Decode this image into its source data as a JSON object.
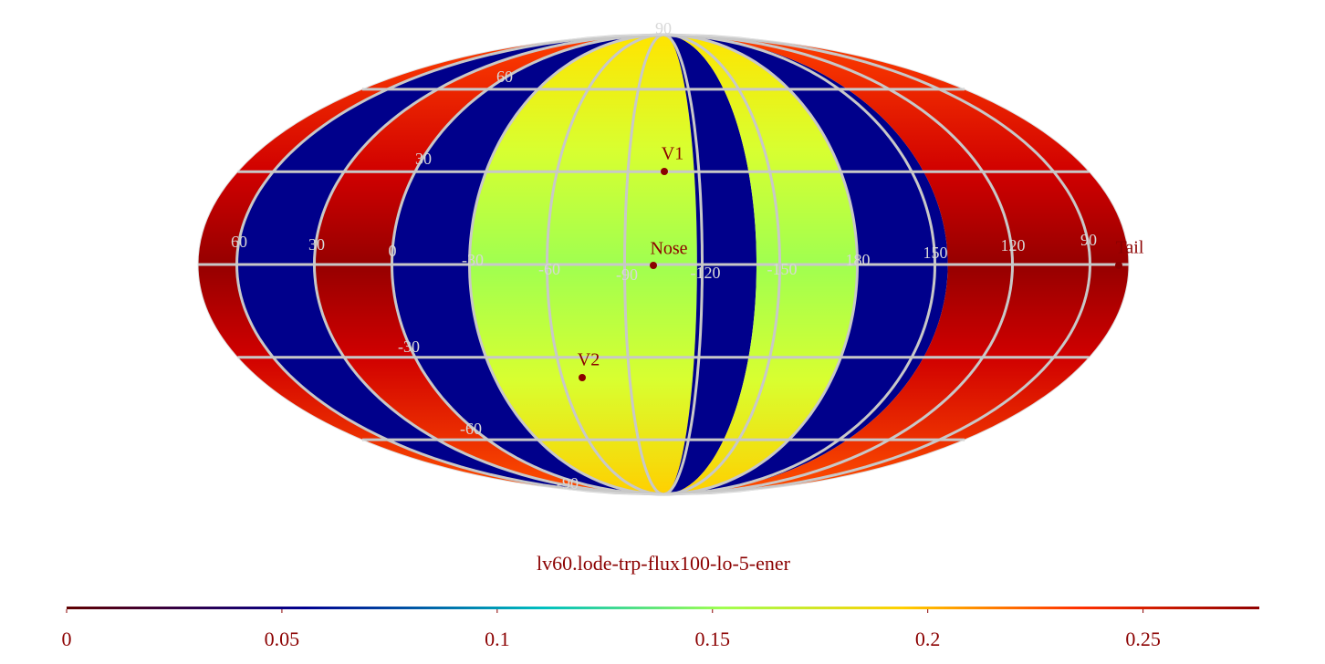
{
  "title": "lv60.lode-trp-flux100-lo-5-ener",
  "map": {
    "latitude_labels": [
      "90",
      "60",
      "30",
      "-30",
      "-60",
      "-90"
    ],
    "longitude_labels": [
      "60",
      "30",
      "0",
      "-30",
      "-60",
      "-90",
      "-120",
      "-150",
      "180",
      "150",
      "120",
      "90"
    ],
    "markers": [
      {
        "label": "V1"
      },
      {
        "label": "Nose"
      },
      {
        "label": "V2"
      },
      {
        "label": "Tail"
      }
    ]
  },
  "colorbar": {
    "range": [
      0,
      0.277
    ],
    "ticks": [
      0,
      0.05,
      0.1,
      0.15,
      0.2,
      0.25
    ]
  }
}
